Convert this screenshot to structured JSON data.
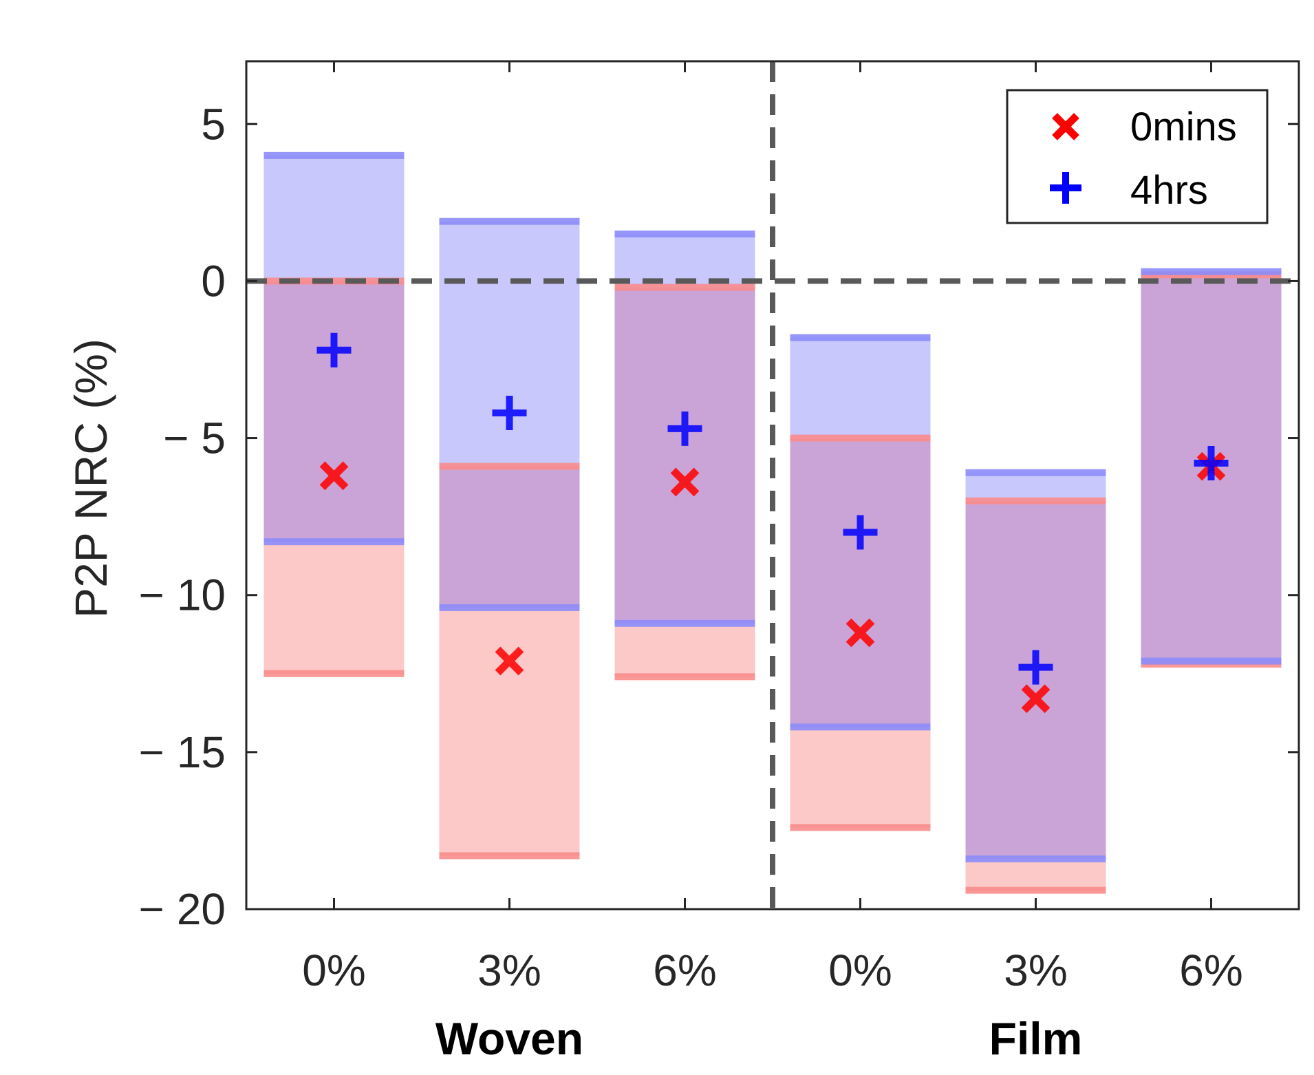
{
  "chart_data": {
    "type": "floating-bar-range",
    "ylabel": "P2P NRC (%)",
    "ylim": [
      -20,
      7
    ],
    "yticks": [
      5,
      0,
      -5,
      -10,
      -15,
      -20
    ],
    "ytick_labels": [
      "5",
      "0",
      "− 5",
      "− 10",
      "− 15",
      "− 20"
    ],
    "categories": [
      "0%",
      "3%",
      "6%",
      "0%",
      "3%",
      "6%"
    ],
    "groups": [
      {
        "label": "Woven",
        "categories": [
          0,
          1,
          2
        ]
      },
      {
        "label": "Film",
        "categories": [
          3,
          4,
          5
        ]
      }
    ],
    "reference_lines": {
      "horizontal": 0,
      "vertical_between": [
        2,
        3
      ]
    },
    "series": [
      {
        "name": "0mins",
        "marker": "x",
        "color": "#ff0000",
        "fill": "#fcc8c8",
        "edge_color": "#fa8c8c",
        "values": [
          -6.2,
          -12.1,
          -6.4,
          -11.2,
          -13.3,
          -5.9
        ],
        "upper": [
          0.0,
          -5.9,
          -0.2,
          -5.0,
          -7.0,
          0.2
        ],
        "lower": [
          -12.5,
          -18.3,
          -12.6,
          -17.4,
          -19.4,
          -12.2
        ]
      },
      {
        "name": "4hrs",
        "marker": "+",
        "color": "#0000ff",
        "fill": "#c8c8fc",
        "edge_color": "#8c8cfa",
        "values": [
          -2.2,
          -4.2,
          -4.7,
          -8.0,
          -12.3,
          -5.8
        ],
        "upper": [
          4.0,
          1.9,
          1.5,
          -1.8,
          -6.1,
          0.3
        ],
        "lower": [
          -8.3,
          -10.4,
          -10.9,
          -14.2,
          -18.4,
          -12.1
        ]
      }
    ],
    "overlap_fill": "#cba4d7",
    "legend_position": "top-right"
  }
}
